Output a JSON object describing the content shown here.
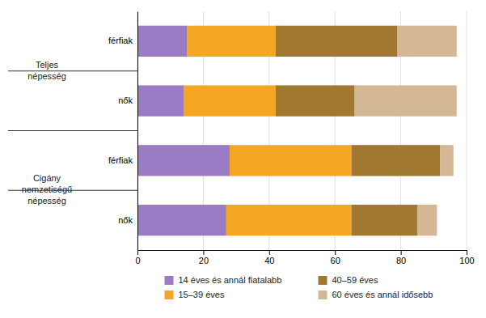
{
  "chart_data": {
    "type": "bar",
    "orientation": "horizontal",
    "stacked": true,
    "categories": [
      "nők",
      "férfiak",
      "nők",
      "férfiak"
    ],
    "series": [
      {
        "name": "14 éves és annál fiatalabb",
        "color": "#9b7cc4",
        "values": [
          27,
          28,
          14,
          15
        ]
      },
      {
        "name": "15–39 éves",
        "color": "#f5a623",
        "values": [
          38,
          37,
          28,
          27
        ]
      },
      {
        "name": "40–59 éves",
        "color": "#a07830",
        "values": [
          20,
          27,
          24,
          37
        ]
      },
      {
        "name": "60 éves és annál idősebb",
        "color": "#d4b896",
        "values": [
          6,
          4,
          31,
          18
        ]
      }
    ],
    "annotations": [
      "Cigány\nnemzetiségű\nnépesség",
      "Teljes\nnépesség"
    ],
    "xlim": [
      0,
      100
    ],
    "xticks": [
      0,
      20,
      40,
      60,
      80,
      100
    ],
    "grid": true,
    "legend": "bottom"
  }
}
